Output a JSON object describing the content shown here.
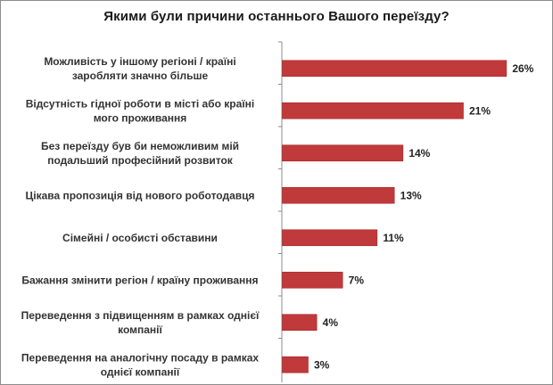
{
  "chart_data": {
    "type": "bar",
    "orientation": "horizontal",
    "title": "Якими були причини останнього Вашого переїзду?",
    "categories": [
      [
        "Можливість у іншому регіоні / країні",
        "заробляти значно більше"
      ],
      [
        "Відсутність гідної роботи в місті або країні",
        "мого проживання"
      ],
      [
        "Без переїзду був би неможливим мій",
        "подальший професійний розвиток"
      ],
      [
        "Цікава пропозиція від нового роботодавця"
      ],
      [
        "Сімейні / особисті обставини"
      ],
      [
        "Бажання змінити регіон / країну проживання"
      ],
      [
        "Переведення з підвищенням в рамках однієї",
        "компанії"
      ],
      [
        "Переведення на аналогічну посаду в рамках",
        "однієї компанії"
      ]
    ],
    "values": [
      26,
      21,
      14,
      13,
      11,
      7,
      4,
      3
    ],
    "value_labels": [
      "26%",
      "21%",
      "14%",
      "13%",
      "11%",
      "7%",
      "4%",
      "3%"
    ],
    "xlim": [
      0,
      30
    ],
    "grid": false,
    "bar_color": "#c0393b",
    "bar_edge_color": "#a52a2c"
  }
}
